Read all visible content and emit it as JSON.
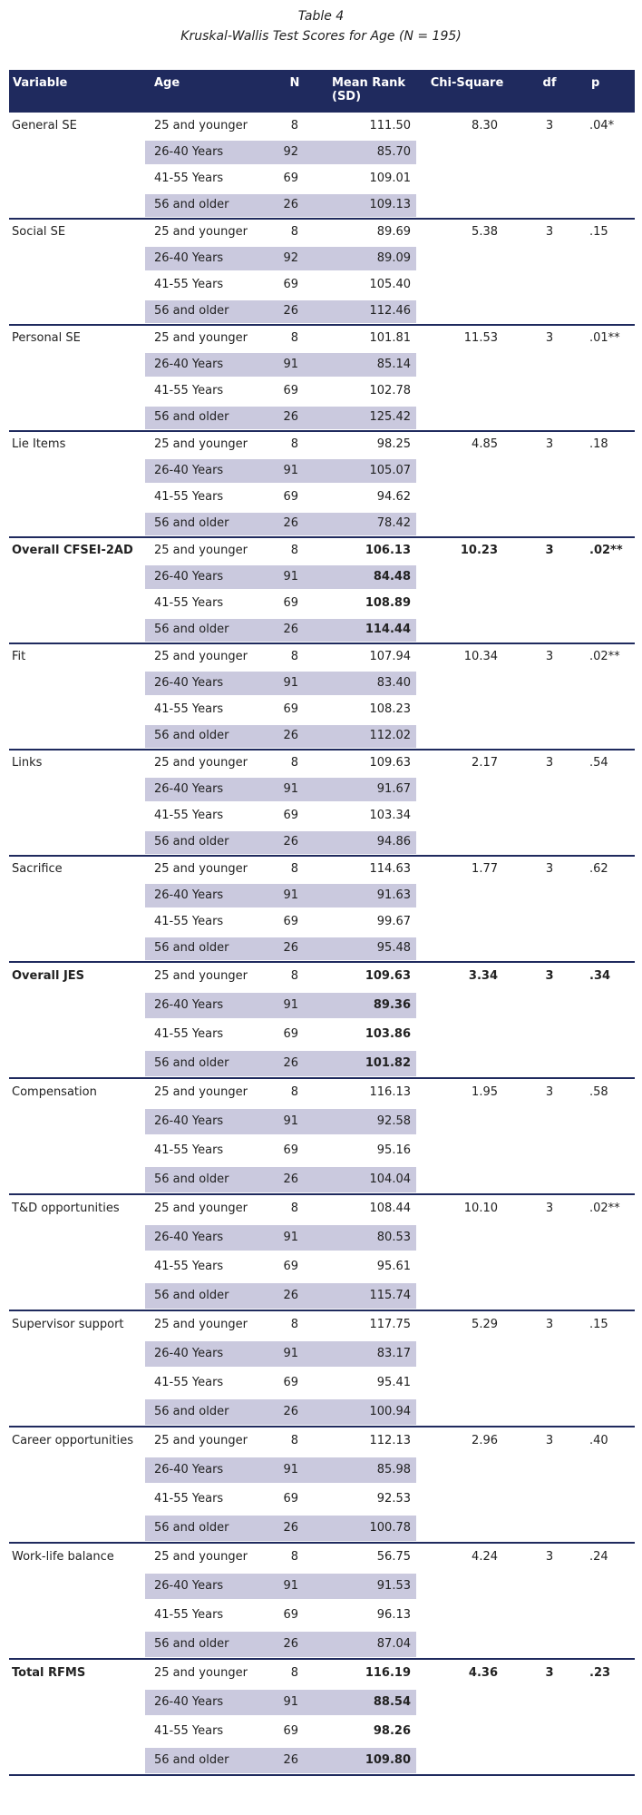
{
  "title": "Table 4",
  "subtitle": "Kruskal-Wallis Test Scores for Age (N = 195)",
  "table": {
    "columns": [
      "Variable",
      "Age",
      "N",
      "Mean Rank (SD)",
      "Chi-Square",
      "df",
      "p"
    ],
    "groups": [
      {
        "variable": "General SE",
        "chi_square": "8.30",
        "df": "3",
        "p": ".04*",
        "bold": false,
        "rows": [
          {
            "age": "25 and younger",
            "n": "8",
            "mean_rank": "111.50"
          },
          {
            "age": "26-40 Years",
            "n": "92",
            "mean_rank": "85.70"
          },
          {
            "age": "41-55 Years",
            "n": "69",
            "mean_rank": "109.01"
          },
          {
            "age": "56 and older",
            "n": "26",
            "mean_rank": "109.13"
          }
        ]
      },
      {
        "variable": "Social SE",
        "chi_square": "5.38",
        "df": "3",
        "p": ".15",
        "bold": false,
        "rows": [
          {
            "age": "25 and younger",
            "n": "8",
            "mean_rank": "89.69"
          },
          {
            "age": "26-40 Years",
            "n": "92",
            "mean_rank": "89.09"
          },
          {
            "age": "41-55 Years",
            "n": "69",
            "mean_rank": "105.40"
          },
          {
            "age": "56 and older",
            "n": "26",
            "mean_rank": "112.46"
          }
        ]
      },
      {
        "variable": "Personal SE",
        "chi_square": "11.53",
        "df": "3",
        "p": ".01**",
        "bold": false,
        "rows": [
          {
            "age": "25 and younger",
            "n": "8",
            "mean_rank": "101.81"
          },
          {
            "age": "26-40 Years",
            "n": "91",
            "mean_rank": "85.14"
          },
          {
            "age": "41-55 Years",
            "n": "69",
            "mean_rank": "102.78"
          },
          {
            "age": "56 and older",
            "n": "26",
            "mean_rank": "125.42"
          }
        ]
      },
      {
        "variable": "Lie Items",
        "chi_square": "4.85",
        "df": "3",
        "p": ".18",
        "bold": false,
        "rows": [
          {
            "age": "25 and younger",
            "n": "8",
            "mean_rank": "98.25"
          },
          {
            "age": "26-40 Years",
            "n": "91",
            "mean_rank": "105.07"
          },
          {
            "age": "41-55 Years",
            "n": "69",
            "mean_rank": "94.62"
          },
          {
            "age": "56 and older",
            "n": "26",
            "mean_rank": "78.42"
          }
        ]
      },
      {
        "variable": "Overall CFSEI-2AD",
        "chi_square": "10.23",
        "df": "3",
        "p": ".02**",
        "bold": true,
        "rows": [
          {
            "age": "25 and younger",
            "n": "8",
            "mean_rank": "106.13"
          },
          {
            "age": "26-40 Years",
            "n": "91",
            "mean_rank": "84.48"
          },
          {
            "age": "41-55 Years",
            "n": "69",
            "mean_rank": "108.89"
          },
          {
            "age": "56 and older",
            "n": "26",
            "mean_rank": "114.44"
          }
        ]
      },
      {
        "variable": "Fit",
        "chi_square": "10.34",
        "df": "3",
        "p": ".02**",
        "bold": false,
        "rows": [
          {
            "age": "25 and younger",
            "n": "8",
            "mean_rank": "107.94"
          },
          {
            "age": "26-40 Years",
            "n": "91",
            "mean_rank": "83.40"
          },
          {
            "age": "41-55 Years",
            "n": "69",
            "mean_rank": "108.23"
          },
          {
            "age": "56 and older",
            "n": "26",
            "mean_rank": "112.02"
          }
        ]
      },
      {
        "variable": "Links",
        "chi_square": "2.17",
        "df": "3",
        "p": ".54",
        "bold": false,
        "rows": [
          {
            "age": "25 and younger",
            "n": "8",
            "mean_rank": "109.63"
          },
          {
            "age": "26-40 Years",
            "n": "91",
            "mean_rank": "91.67"
          },
          {
            "age": "41-55 Years",
            "n": "69",
            "mean_rank": "103.34"
          },
          {
            "age": "56 and older",
            "n": "26",
            "mean_rank": "94.86"
          }
        ]
      },
      {
        "variable": "Sacrifice",
        "chi_square": "1.77",
        "df": "3",
        "p": ".62",
        "bold": false,
        "rows": [
          {
            "age": "25 and younger",
            "n": "8",
            "mean_rank": "114.63"
          },
          {
            "age": "26-40 Years",
            "n": "91",
            "mean_rank": "91.63"
          },
          {
            "age": "41-55 Years",
            "n": "69",
            "mean_rank": "99.67"
          },
          {
            "age": "56 and older",
            "n": "26",
            "mean_rank": "95.48"
          }
        ]
      },
      {
        "variable": "Overall JES",
        "chi_square": "3.34",
        "df": "3",
        "p": ".34",
        "bold": true,
        "rows": [
          {
            "age": "25 and younger",
            "n": "8",
            "mean_rank": "109.63"
          },
          {
            "age": "26-40 Years",
            "n": "91",
            "mean_rank": "89.36"
          },
          {
            "age": "41-55 Years",
            "n": "69",
            "mean_rank": "103.86"
          },
          {
            "age": "56 and older",
            "n": "26",
            "mean_rank": "101.82"
          }
        ]
      },
      {
        "variable": "Compensation",
        "chi_square": "1.95",
        "df": "3",
        "p": ".58",
        "bold": false,
        "rows": [
          {
            "age": "25 and younger",
            "n": "8",
            "mean_rank": "116.13"
          },
          {
            "age": "26-40 Years",
            "n": "91",
            "mean_rank": "92.58"
          },
          {
            "age": "41-55 Years",
            "n": "69",
            "mean_rank": "95.16"
          },
          {
            "age": "56 and older",
            "n": "26",
            "mean_rank": "104.04"
          }
        ]
      },
      {
        "variable": "T&D opportunities",
        "chi_square": "10.10",
        "df": "3",
        "p": ".02**",
        "bold": false,
        "rows": [
          {
            "age": "25 and younger",
            "n": "8",
            "mean_rank": "108.44"
          },
          {
            "age": "26-40 Years",
            "n": "91",
            "mean_rank": "80.53"
          },
          {
            "age": "41-55 Years",
            "n": "69",
            "mean_rank": "95.61"
          },
          {
            "age": "56 and older",
            "n": "26",
            "mean_rank": "115.74"
          }
        ]
      },
      {
        "variable": "Supervisor support",
        "chi_square": "5.29",
        "df": "3",
        "p": ".15",
        "bold": false,
        "rows": [
          {
            "age": "25 and younger",
            "n": "8",
            "mean_rank": "117.75"
          },
          {
            "age": "26-40 Years",
            "n": "91",
            "mean_rank": "83.17"
          },
          {
            "age": "41-55 Years",
            "n": "69",
            "mean_rank": "95.41"
          },
          {
            "age": "56 and older",
            "n": "26",
            "mean_rank": "100.94"
          }
        ]
      },
      {
        "variable": "Career opportunities",
        "chi_square": "2.96",
        "df": "3",
        "p": ".40",
        "bold": false,
        "rows": [
          {
            "age": "25 and younger",
            "n": "8",
            "mean_rank": "112.13"
          },
          {
            "age": "26-40 Years",
            "n": "91",
            "mean_rank": "85.98"
          },
          {
            "age": "41-55 Years",
            "n": "69",
            "mean_rank": "92.53"
          },
          {
            "age": "56 and older",
            "n": "26",
            "mean_rank": "100.78"
          }
        ]
      },
      {
        "variable": "Work-life balance",
        "chi_square": "4.24",
        "df": "3",
        "p": ".24",
        "bold": false,
        "rows": [
          {
            "age": "25 and younger",
            "n": "8",
            "mean_rank": "56.75"
          },
          {
            "age": "26-40 Years",
            "n": "91",
            "mean_rank": "91.53"
          },
          {
            "age": "41-55 Years",
            "n": "69",
            "mean_rank": "96.13"
          },
          {
            "age": "56 and older",
            "n": "26",
            "mean_rank": "87.04"
          }
        ]
      },
      {
        "variable": "Total RFMS",
        "chi_square": "4.36",
        "df": "3",
        "p": ".23",
        "bold": true,
        "rows": [
          {
            "age": "25 and younger",
            "n": "8",
            "mean_rank": "116.19"
          },
          {
            "age": "26-40 Years",
            "n": "91",
            "mean_rank": "88.54"
          },
          {
            "age": "41-55 Years",
            "n": "69",
            "mean_rank": "98.26"
          },
          {
            "age": "56 and older",
            "n": "26",
            "mean_rank": "109.80"
          }
        ]
      }
    ]
  }
}
